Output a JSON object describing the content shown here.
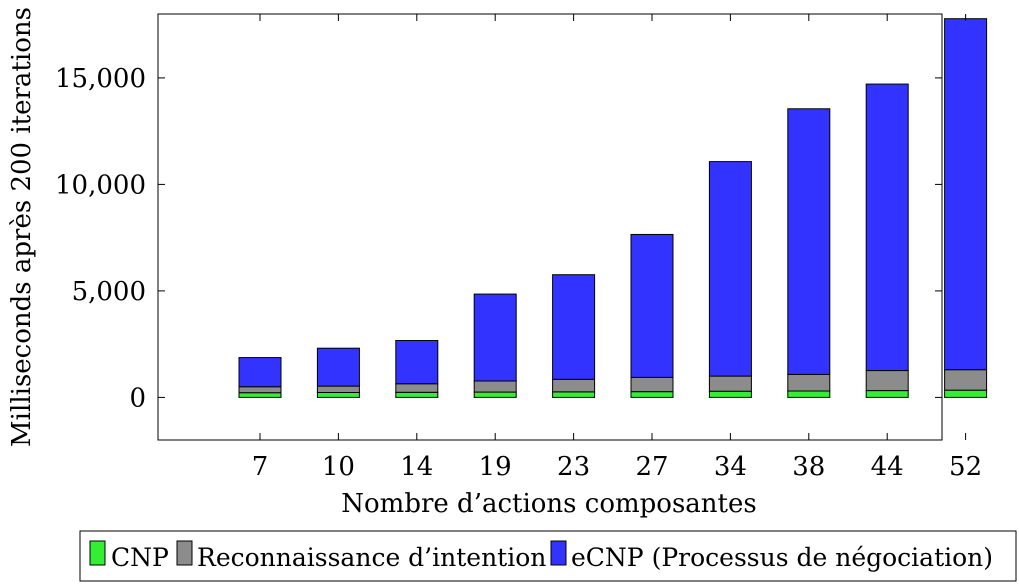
{
  "chart_data": {
    "type": "bar",
    "stacked": true,
    "title": "",
    "xlabel": "Nombre d’actions composantes",
    "ylabel": "Milliseconds après 200 iterations",
    "categories": [
      "7",
      "10",
      "14",
      "19",
      "23",
      "27",
      "34",
      "38",
      "44",
      "52"
    ],
    "ylim": [
      -2000,
      18000
    ],
    "yticks": [
      0,
      5000,
      10000,
      15000
    ],
    "ytick_labels": [
      "0",
      "5,000",
      "10,000",
      "15,000"
    ],
    "series": [
      {
        "name": "CNP",
        "color": "#33ee33",
        "values": [
          220,
          230,
          240,
          250,
          260,
          270,
          290,
          300,
          320,
          340
        ]
      },
      {
        "name": "Reconnaissance d’intention",
        "color": "#8c8c8c",
        "values": [
          280,
          300,
          400,
          520,
          590,
          670,
          710,
          780,
          940,
          960
        ]
      },
      {
        "name": "eCNP (Processus de négociation)",
        "color": "#3333ff",
        "values": [
          1370,
          1780,
          2030,
          4080,
          4910,
          6710,
          10070,
          12470,
          13450,
          16480
        ]
      }
    ],
    "legend": {
      "position": "bottom"
    }
  }
}
